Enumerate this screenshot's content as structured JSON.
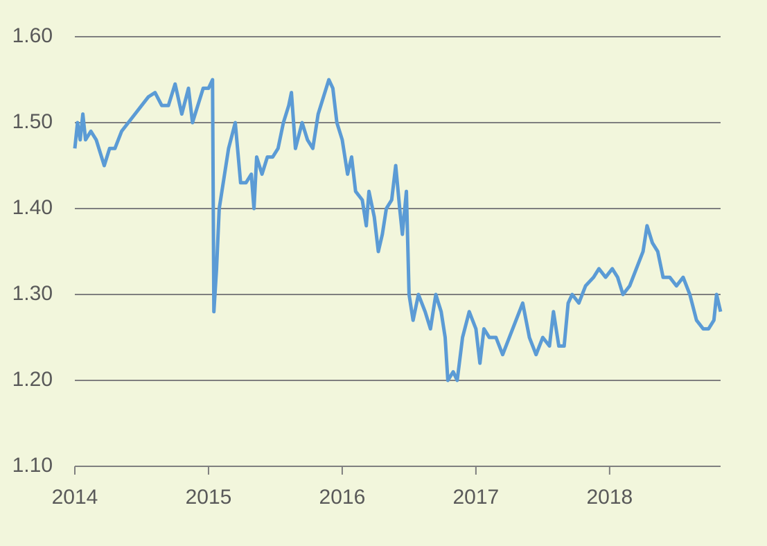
{
  "chart_data": {
    "type": "line",
    "x": [
      2014.0,
      2014.02,
      2014.04,
      2014.06,
      2014.08,
      2014.12,
      2014.16,
      2014.2,
      2014.22,
      2014.26,
      2014.3,
      2014.35,
      2014.4,
      2014.45,
      2014.5,
      2014.55,
      2014.6,
      2014.65,
      2014.7,
      2014.75,
      2014.8,
      2014.85,
      2014.88,
      2014.92,
      2014.96,
      2015.0,
      2015.03,
      2015.04,
      2015.06,
      2015.08,
      2015.12,
      2015.15,
      2015.2,
      2015.24,
      2015.28,
      2015.32,
      2015.34,
      2015.36,
      2015.4,
      2015.44,
      2015.48,
      2015.52,
      2015.56,
      2015.6,
      2015.62,
      2015.65,
      2015.7,
      2015.74,
      2015.78,
      2015.82,
      2015.86,
      2015.9,
      2015.93,
      2015.96,
      2016.0,
      2016.04,
      2016.07,
      2016.1,
      2016.15,
      2016.18,
      2016.2,
      2016.24,
      2016.27,
      2016.3,
      2016.33,
      2016.37,
      2016.4,
      2016.43,
      2016.45,
      2016.48,
      2016.5,
      2016.53,
      2016.57,
      2016.62,
      2016.66,
      2016.7,
      2016.74,
      2016.77,
      2016.79,
      2016.83,
      2016.86,
      2016.9,
      2016.95,
      2017.0,
      2017.03,
      2017.06,
      2017.1,
      2017.15,
      2017.2,
      2017.25,
      2017.3,
      2017.35,
      2017.4,
      2017.45,
      2017.5,
      2017.55,
      2017.58,
      2017.62,
      2017.66,
      2017.69,
      2017.72,
      2017.77,
      2017.82,
      2017.88,
      2017.92,
      2017.97,
      2018.02,
      2018.06,
      2018.1,
      2018.15,
      2018.2,
      2018.25,
      2018.28,
      2018.32,
      2018.36,
      2018.4,
      2018.45,
      2018.5,
      2018.55,
      2018.6,
      2018.65,
      2018.7,
      2018.74,
      2018.78,
      2018.8,
      2018.83
    ],
    "values": [
      1.47,
      1.5,
      1.48,
      1.51,
      1.48,
      1.49,
      1.48,
      1.46,
      1.45,
      1.47,
      1.47,
      1.49,
      1.5,
      1.51,
      1.52,
      1.53,
      1.535,
      1.52,
      1.52,
      1.545,
      1.51,
      1.54,
      1.5,
      1.52,
      1.54,
      1.54,
      1.55,
      1.28,
      1.33,
      1.4,
      1.44,
      1.47,
      1.5,
      1.43,
      1.43,
      1.44,
      1.4,
      1.46,
      1.44,
      1.46,
      1.46,
      1.47,
      1.5,
      1.52,
      1.535,
      1.47,
      1.5,
      1.48,
      1.47,
      1.51,
      1.53,
      1.55,
      1.54,
      1.5,
      1.48,
      1.44,
      1.46,
      1.42,
      1.41,
      1.38,
      1.42,
      1.39,
      1.35,
      1.37,
      1.4,
      1.41,
      1.45,
      1.4,
      1.37,
      1.42,
      1.3,
      1.27,
      1.3,
      1.28,
      1.26,
      1.3,
      1.28,
      1.25,
      1.2,
      1.21,
      1.2,
      1.25,
      1.28,
      1.26,
      1.22,
      1.26,
      1.25,
      1.25,
      1.23,
      1.25,
      1.27,
      1.29,
      1.25,
      1.23,
      1.25,
      1.24,
      1.28,
      1.24,
      1.24,
      1.29,
      1.3,
      1.29,
      1.31,
      1.32,
      1.33,
      1.32,
      1.33,
      1.32,
      1.3,
      1.31,
      1.33,
      1.35,
      1.38,
      1.36,
      1.35,
      1.32,
      1.32,
      1.31,
      1.32,
      1.3,
      1.27,
      1.26,
      1.26,
      1.27,
      1.3,
      1.28
    ],
    "color": "#5b9bd5",
    "xlim": [
      2014,
      2018.83
    ],
    "xticks": [
      2014,
      2015,
      2016,
      2017,
      2018
    ],
    "ylim": [
      1.1,
      1.6
    ],
    "yticks": [
      {
        "value": 1.1,
        "label": "1.10"
      },
      {
        "value": 1.2,
        "label": "1.20"
      },
      {
        "value": 1.3,
        "label": "1.30"
      },
      {
        "value": 1.4,
        "label": "1.40"
      },
      {
        "value": 1.5,
        "label": "1.50"
      },
      {
        "value": 1.6,
        "label": "1.60"
      }
    ],
    "grid": true
  }
}
